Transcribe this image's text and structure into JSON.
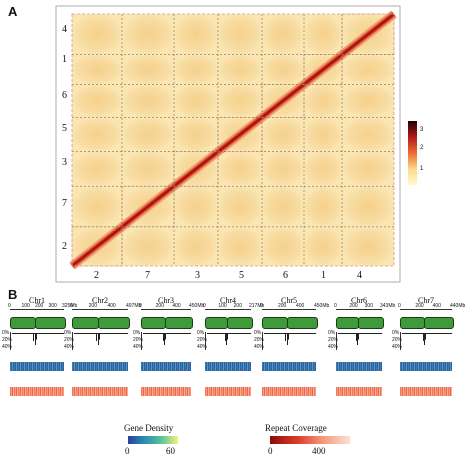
{
  "panel_a": {
    "letter": "A",
    "order": [
      "2",
      "7",
      "3",
      "5",
      "6",
      "1",
      "4"
    ],
    "y_labels": [
      "4",
      "1",
      "6",
      "5",
      "3",
      "7",
      "2"
    ],
    "colorbar_ticks": [
      "3",
      "2",
      "1"
    ]
  },
  "panel_b": {
    "letter": "B",
    "chromosomes": [
      {
        "name": "Chr1",
        "ticks": [
          "0",
          "100",
          "200",
          "300",
          "325Mb"
        ]
      },
      {
        "name": "Chr2",
        "ticks": [
          "0",
          "200",
          "400",
          "497Mb"
        ]
      },
      {
        "name": "Chr3",
        "ticks": [
          "0",
          "200",
          "400",
          "450Mb"
        ]
      },
      {
        "name": "Chr4",
        "ticks": [
          "0",
          "100",
          "200",
          "217Mb"
        ]
      },
      {
        "name": "Chr5",
        "ticks": [
          "0",
          "200",
          "400",
          "450Mb"
        ]
      },
      {
        "name": "Chr6",
        "ticks": [
          "0",
          "200",
          "300",
          "343Mb"
        ]
      },
      {
        "name": "Chr7",
        "ticks": [
          "0",
          "200",
          "400",
          "440Mb"
        ]
      }
    ],
    "track_labels": [
      "0%",
      "20%",
      "40%"
    ],
    "gene_density_legend": {
      "title": "Gene Density",
      "min": "0",
      "max": "60"
    },
    "repeat_legend": {
      "title": "Repeat Coverage",
      "min": "0",
      "max": "400"
    }
  },
  "colors": {
    "heat_low": "#fdf5c8",
    "heat_mid": "#f5c987",
    "heat_high": "#c7231d",
    "centromere_green": "#3f9a3a",
    "gene_low": "#2c3f9e",
    "gene_high": "#f5f07a",
    "repeat": "#f05a3a"
  }
}
